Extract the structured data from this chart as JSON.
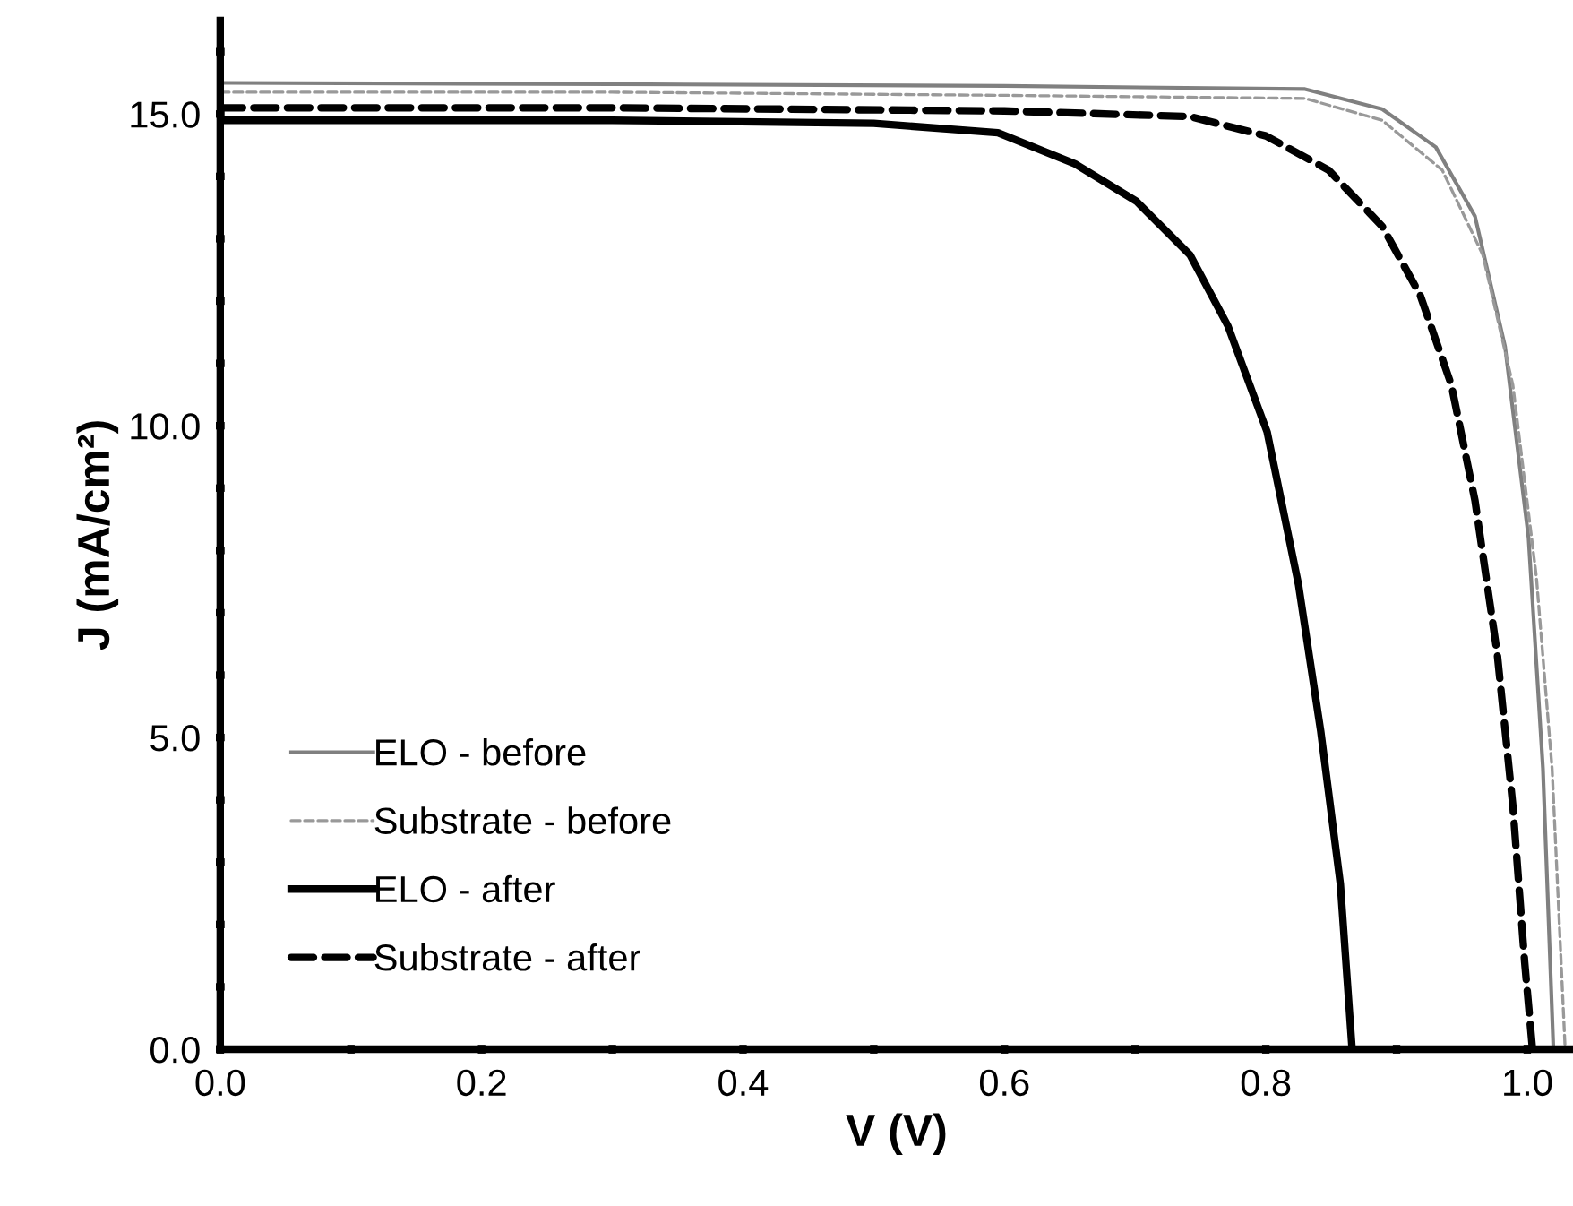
{
  "chart_data": {
    "type": "line",
    "xlabel": "V (V)",
    "ylabel": "J (mA/cm²)",
    "xlim": [
      0,
      1.035
    ],
    "ylim": [
      0,
      16.5
    ],
    "xticks": [
      {
        "value": 0,
        "label": "0.0"
      },
      {
        "value": 0.1,
        "label": null
      },
      {
        "value": 0.2,
        "label": "0.2"
      },
      {
        "value": 0.3,
        "label": null
      },
      {
        "value": 0.4,
        "label": "0.4"
      },
      {
        "value": 0.5,
        "label": null
      },
      {
        "value": 0.6,
        "label": "0.6"
      },
      {
        "value": 0.7,
        "label": null
      },
      {
        "value": 0.8,
        "label": "0.8"
      },
      {
        "value": 0.9,
        "label": null
      },
      {
        "value": 1.0,
        "label": "1.0"
      }
    ],
    "yticks": [
      {
        "value": 0,
        "label": "0.0"
      },
      {
        "value": 1,
        "label": null
      },
      {
        "value": 2,
        "label": null
      },
      {
        "value": 3,
        "label": null
      },
      {
        "value": 4,
        "label": null
      },
      {
        "value": 5,
        "label": "5.0"
      },
      {
        "value": 6,
        "label": null
      },
      {
        "value": 7,
        "label": null
      },
      {
        "value": 8,
        "label": null
      },
      {
        "value": 9,
        "label": null
      },
      {
        "value": 10,
        "label": "10.0"
      },
      {
        "value": 11,
        "label": null
      },
      {
        "value": 12,
        "label": null
      },
      {
        "value": 13,
        "label": null
      },
      {
        "value": 14,
        "label": null
      },
      {
        "value": 15,
        "label": "15.0"
      },
      {
        "value": 16,
        "label": null
      }
    ],
    "grid": false,
    "legend": "bottom left",
    "marker": "none",
    "series": [
      {
        "name": "ELO - before",
        "color": "#808080",
        "line_style": "solid",
        "x": [
          0,
          0.3,
          0.6,
          0.83,
          0.889,
          0.93,
          0.96,
          0.983,
          1.001,
          1.012,
          1.02
        ],
        "values": [
          15.5,
          15.48,
          15.45,
          15.4,
          15.08,
          14.47,
          13.36,
          11.27,
          8.2,
          4.5,
          0
        ]
      },
      {
        "name": "Substrate - before",
        "color": "#999999",
        "line_style": "dashed",
        "x": [
          0,
          0.3,
          0.6,
          0.83,
          0.889,
          0.935,
          0.966,
          0.989,
          1.007,
          1.019,
          1.029
        ],
        "values": [
          15.35,
          15.35,
          15.3,
          15.25,
          14.9,
          14.1,
          12.74,
          10.65,
          7.57,
          4.5,
          0
        ]
      },
      {
        "name": "ELO - after",
        "color": "#000000",
        "line_style": "solid",
        "x": [
          0,
          0.3,
          0.5,
          0.595,
          0.654,
          0.701,
          0.742,
          0.771,
          0.801,
          0.825,
          0.842,
          0.857,
          0.866
        ],
        "values": [
          14.9,
          14.9,
          14.85,
          14.7,
          14.2,
          13.6,
          12.74,
          11.6,
          9.9,
          7.45,
          5.1,
          2.65,
          0
        ]
      },
      {
        "name": "Substrate - after",
        "color": "#000000",
        "line_style": "dashed",
        "x": [
          0,
          0.3,
          0.6,
          0.742,
          0.8,
          0.848,
          0.889,
          0.918,
          0.942,
          0.96,
          0.977,
          0.989,
          0.998,
          1.004
        ],
        "values": [
          15.1,
          15.1,
          15.05,
          14.96,
          14.65,
          14.1,
          13.2,
          12.1,
          10.65,
          8.8,
          6.35,
          3.9,
          1.4,
          0
        ]
      }
    ]
  }
}
